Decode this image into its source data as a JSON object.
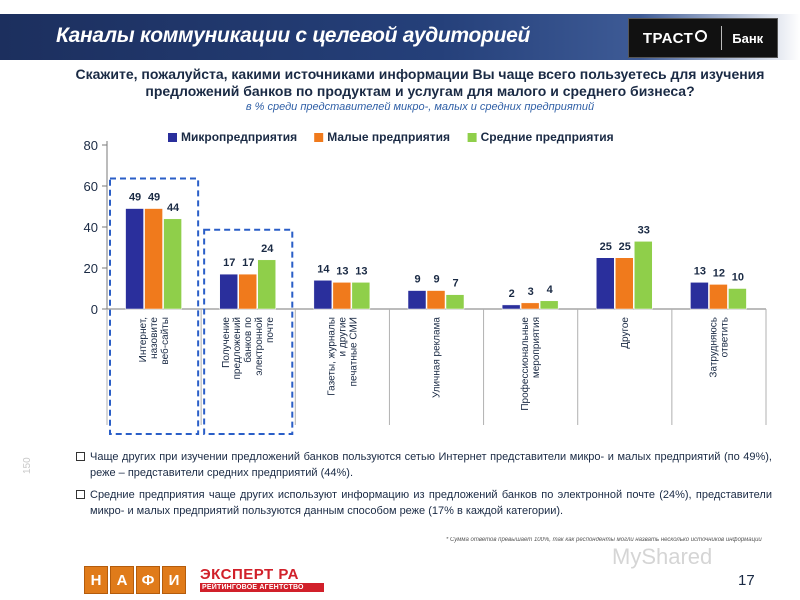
{
  "header": {
    "title": "Каналы коммуникации с целевой аудиторией",
    "bank_brand": "ТРАСТ",
    "bank_word": "Банк"
  },
  "question": "Скажите, пожалуйста, какими источниками информации Вы чаще всего пользуетесь для изучения предложений банков по продуктам и услугам для малого и среднего бизнеса?",
  "subtitle": "в % среди представителей микро-, малых и средних предприятий",
  "chart_data": {
    "type": "bar",
    "categories": [
      "Интернет, назовите веб-сайты",
      "Получение предложений банков по электронной почте",
      "Газеты, журналы и другие печатные СМИ",
      "Уличная реклама",
      "Профессиональные мероприятия",
      "Другое",
      "Затрудняюсь ответить"
    ],
    "series": [
      {
        "name": "Микропредприятия",
        "values": [
          49,
          17,
          14,
          9,
          2,
          25,
          13
        ],
        "color": "#2a2f9c"
      },
      {
        "name": "Малые предприятия",
        "values": [
          49,
          17,
          13,
          9,
          3,
          25,
          12
        ],
        "color": "#f07a1c"
      },
      {
        "name": "Средние предприятия",
        "values": [
          44,
          24,
          13,
          7,
          4,
          33,
          10
        ],
        "color": "#8fcf4a"
      }
    ],
    "yticks": [
      0,
      20,
      40,
      60,
      80
    ],
    "ylim": [
      0,
      80
    ],
    "highlighted_categories": [
      0,
      1
    ],
    "legend_position": "top"
  },
  "notes": [
    "Чаще других при изучении предложений банков пользуются сетью Интернет представители микро- и малых предприятий (по 49%), реже – представители средних предприятий (44%).",
    "Средние предприятия чаще других используют информацию из предложений банков по электронной почте (24%), представители микро- и малых предприятий пользуются данным способом реже (17% в каждой категории)."
  ],
  "footnote": "* Сумма ответов превышает 100%, так как респонденты могли назвать несколько источников информации",
  "side_number": "150",
  "logos": {
    "nafi": [
      "Н",
      "А",
      "Ф",
      "И"
    ],
    "expert_top": "ЭКСПЕРТ РА",
    "expert_bottom": "РЕЙТИНГОВОЕ АГЕНТСТВО"
  },
  "watermark": "MyShared",
  "page_number": "17"
}
